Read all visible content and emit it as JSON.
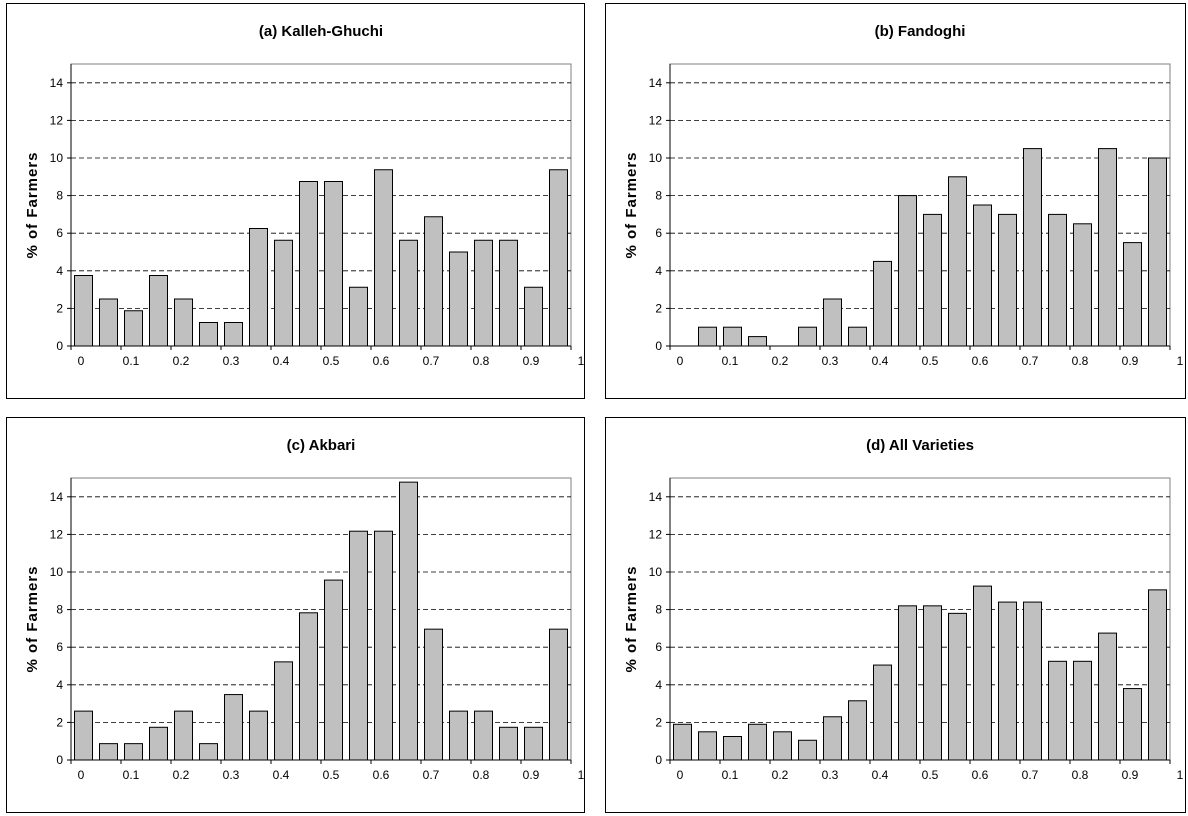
{
  "colors": {
    "bar_fill": "#c0c0c0",
    "bar_stroke": "#000000",
    "grid": "#000000",
    "axis": "#808080"
  },
  "chart_data": [
    {
      "type": "bar",
      "title": "(a) Kalleh-Ghuchi",
      "ylabel": "% of Farmers",
      "xlabel": "",
      "ylim": [
        0,
        15
      ],
      "yticks": [
        0,
        2,
        4,
        6,
        8,
        10,
        12,
        14
      ],
      "xlim": [
        0,
        1
      ],
      "xtick_labels": [
        "0",
        "0.1",
        "0.2",
        "0.3",
        "0.4",
        "0.5",
        "0.6",
        "0.7",
        "0.8",
        "0.9",
        "1"
      ],
      "grid": "dashed horizontal",
      "x": [
        0.05,
        0.1,
        0.15,
        0.2,
        0.25,
        0.3,
        0.35,
        0.4,
        0.45,
        0.5,
        0.55,
        0.6,
        0.65,
        0.7,
        0.75,
        0.8,
        0.85,
        0.9,
        0.95,
        1.0
      ],
      "values": [
        3.75,
        2.5,
        1.875,
        3.75,
        2.5,
        1.25,
        1.25,
        6.25,
        5.625,
        8.75,
        8.75,
        3.125,
        9.375,
        5.625,
        6.875,
        5.0,
        5.625,
        5.625,
        3.125,
        9.375
      ]
    },
    {
      "type": "bar",
      "title": "(b) Fandoghi",
      "ylabel": "% of Farmers",
      "xlabel": "",
      "ylim": [
        0,
        15
      ],
      "yticks": [
        0,
        2,
        4,
        6,
        8,
        10,
        12,
        14
      ],
      "xlim": [
        0,
        1
      ],
      "xtick_labels": [
        "0",
        "0.1",
        "0.2",
        "0.3",
        "0.4",
        "0.5",
        "0.6",
        "0.7",
        "0.8",
        "0.9",
        "1"
      ],
      "grid": "dashed horizontal",
      "x": [
        0.05,
        0.1,
        0.15,
        0.2,
        0.25,
        0.3,
        0.35,
        0.4,
        0.45,
        0.5,
        0.55,
        0.6,
        0.65,
        0.7,
        0.75,
        0.8,
        0.85,
        0.9,
        0.95,
        1.0
      ],
      "values": [
        0,
        1.0,
        1.0,
        0.5,
        0,
        1.0,
        2.5,
        1.0,
        4.5,
        8.0,
        7.0,
        9.0,
        7.5,
        7.0,
        10.5,
        7.0,
        6.5,
        10.5,
        5.5,
        10.0
      ]
    },
    {
      "type": "bar",
      "title": "(c) Akbari",
      "ylabel": "% of Farmers",
      "xlabel": "",
      "ylim": [
        0,
        15
      ],
      "yticks": [
        0,
        2,
        4,
        6,
        8,
        10,
        12,
        14
      ],
      "xlim": [
        0,
        1
      ],
      "xtick_labels": [
        "0",
        "0.1",
        "0.2",
        "0.3",
        "0.4",
        "0.5",
        "0.6",
        "0.7",
        "0.8",
        "0.9",
        "1"
      ],
      "grid": "dashed horizontal",
      "x": [
        0.05,
        0.1,
        0.15,
        0.2,
        0.25,
        0.3,
        0.35,
        0.4,
        0.45,
        0.5,
        0.55,
        0.6,
        0.65,
        0.7,
        0.75,
        0.8,
        0.85,
        0.9,
        0.95,
        1.0
      ],
      "values": [
        2.6,
        0.87,
        0.87,
        1.74,
        2.6,
        0.87,
        3.48,
        2.6,
        5.22,
        7.83,
        9.57,
        12.17,
        12.17,
        14.78,
        6.96,
        2.6,
        2.6,
        1.74,
        1.74,
        6.96
      ]
    },
    {
      "type": "bar",
      "title": "(d) All Varieties",
      "ylabel": "% of Farmers",
      "xlabel": "",
      "ylim": [
        0,
        15
      ],
      "yticks": [
        0,
        2,
        4,
        6,
        8,
        10,
        12,
        14
      ],
      "xlim": [
        0,
        1
      ],
      "xtick_labels": [
        "0",
        "0.1",
        "0.2",
        "0.3",
        "0.4",
        "0.5",
        "0.6",
        "0.7",
        "0.8",
        "0.9",
        "1"
      ],
      "grid": "dashed horizontal",
      "x": [
        0.05,
        0.1,
        0.15,
        0.2,
        0.25,
        0.3,
        0.35,
        0.4,
        0.45,
        0.5,
        0.55,
        0.6,
        0.65,
        0.7,
        0.75,
        0.8,
        0.85,
        0.9,
        0.95,
        1.0
      ],
      "values": [
        1.9,
        1.5,
        1.25,
        1.9,
        1.5,
        1.05,
        2.3,
        3.15,
        5.05,
        8.2,
        8.2,
        7.8,
        9.25,
        8.4,
        8.4,
        5.25,
        5.25,
        6.75,
        3.8,
        9.05
      ]
    }
  ]
}
